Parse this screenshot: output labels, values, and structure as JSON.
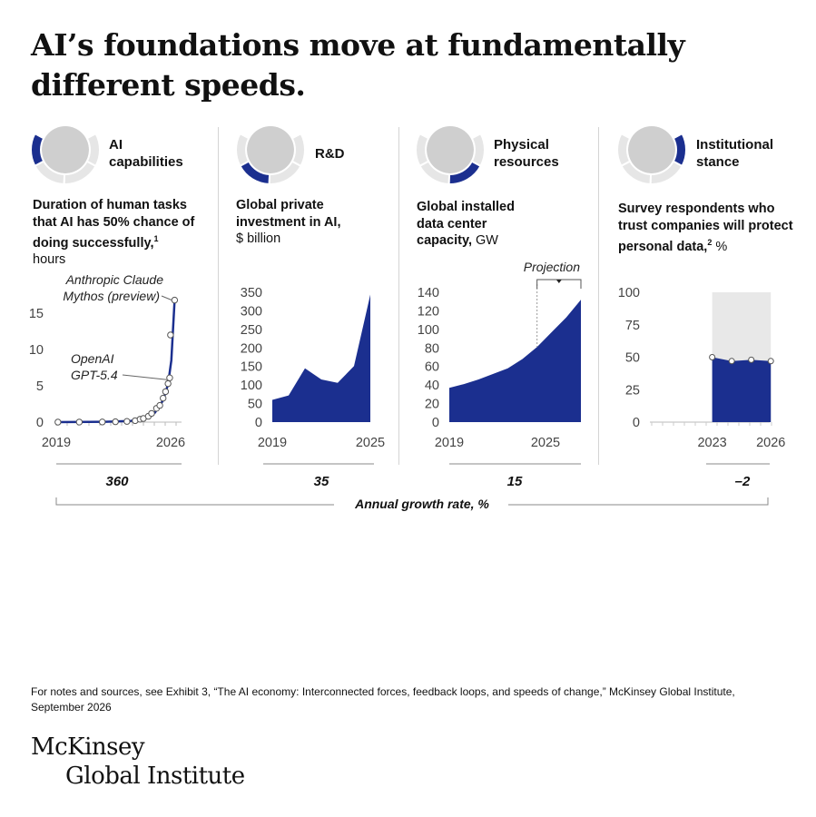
{
  "title": "AI’s foundations move at fundamentally different speeds.",
  "colors": {
    "navy": "#1b2f8f",
    "gray": "#cfcfcf",
    "lightgray": "#e6e6e6",
    "text": "#111111"
  },
  "panels": [
    {
      "tag": "AI capabilities",
      "desc_bold": "Duration of human tasks that AI has 50% chance of doing successfully,",
      "desc_sup": "1",
      "desc_unit": "hours",
      "growth": "360"
    },
    {
      "tag": "R&D",
      "desc_bold": "Global private investment in AI,",
      "desc_sup": "",
      "desc_unit": "$ billion",
      "growth": "35"
    },
    {
      "tag": "Physical resources",
      "desc_bold": "Global installed data center capacity,",
      "desc_sup": "",
      "desc_unit": "GW",
      "growth": "15"
    },
    {
      "tag": "Institutional stance",
      "desc_bold": "Survey respondents who trust companies will protect personal data,",
      "desc_sup": "2",
      "desc_unit": "%",
      "growth": "–2"
    }
  ],
  "growth_axis_label": "Annual growth rate, %",
  "footnote": "For notes and sources, see Exhibit 3, “The AI economy: Interconnected forces, feedback loops, and speeds of change,” McKinsey Global Institute, September 2026",
  "logo": {
    "line1": "McKinsey",
    "line2": "Global Institute"
  },
  "chart_data": [
    {
      "type": "scatter",
      "title": "Duration of human tasks that AI has 50% chance of doing successfully",
      "ylabel": "hours",
      "xlim": [
        2019,
        2026.4
      ],
      "ylim": [
        0,
        17
      ],
      "x_tick_labels": [
        "2019",
        "2026"
      ],
      "y_ticks": [
        0,
        5,
        10,
        15
      ],
      "points": [
        [
          2019.1,
          0.0
        ],
        [
          2020.4,
          0.01
        ],
        [
          2021.8,
          0.02
        ],
        [
          2022.6,
          0.05
        ],
        [
          2023.3,
          0.1
        ],
        [
          2023.8,
          0.2
        ],
        [
          2024.1,
          0.4
        ],
        [
          2024.3,
          0.5
        ],
        [
          2024.6,
          0.8
        ],
        [
          2024.8,
          1.2
        ],
        [
          2025.1,
          1.9
        ],
        [
          2025.3,
          2.3
        ],
        [
          2025.5,
          3.3
        ],
        [
          2025.65,
          4.2
        ],
        [
          2025.8,
          5.3
        ],
        [
          2025.9,
          6.1
        ],
        [
          2025.95,
          12.0
        ],
        [
          2026.2,
          16.8
        ]
      ],
      "curve": [
        [
          2019,
          0
        ],
        [
          2022,
          0.05
        ],
        [
          2023.5,
          0.15
        ],
        [
          2024.5,
          0.6
        ],
        [
          2025,
          1.3
        ],
        [
          2025.5,
          3.0
        ],
        [
          2025.8,
          5.2
        ],
        [
          2026.0,
          8.5
        ],
        [
          2026.2,
          16.8
        ]
      ],
      "annotations": [
        {
          "text": "Anthropic Claude",
          "text2": "Mythos (preview)",
          "x": 2026.2,
          "y": 16.8
        },
        {
          "text": "OpenAI",
          "text2": "GPT-5.4",
          "x": 2025.9,
          "y": 6.1
        }
      ]
    },
    {
      "type": "area",
      "title": "Global private investment in AI",
      "ylabel": "$ billion",
      "xlim": [
        2019,
        2025
      ],
      "ylim": [
        0,
        350
      ],
      "x_tick_labels": [
        "2019",
        "2025"
      ],
      "y_ticks": [
        0,
        50,
        100,
        150,
        200,
        250,
        300,
        350
      ],
      "x": [
        2019,
        2020,
        2021,
        2022,
        2023,
        2024,
        2025
      ],
      "values": [
        60,
        72,
        145,
        115,
        106,
        151,
        344
      ]
    },
    {
      "type": "area",
      "title": "Global installed data center capacity",
      "ylabel": "GW",
      "xlim": [
        2019,
        2028
      ],
      "ylim": [
        0,
        140
      ],
      "x_tick_labels": [
        "2019",
        "2025"
      ],
      "y_ticks": [
        0,
        20,
        40,
        60,
        80,
        100,
        120,
        140
      ],
      "x": [
        2019,
        2020,
        2021,
        2022,
        2023,
        2024,
        2025,
        2026,
        2027,
        2028
      ],
      "values": [
        37,
        41,
        46,
        52,
        58,
        68,
        81,
        97,
        113,
        132
      ],
      "projection_label": "Projection",
      "projection_from": 2025
    },
    {
      "type": "bar",
      "title": "Survey respondents who trust companies will protect personal data",
      "ylabel": "%",
      "xlim": [
        2020,
        2026.5
      ],
      "ylim": [
        0,
        100
      ],
      "x_tick_labels": [
        "2023",
        "2026"
      ],
      "y_ticks": [
        0,
        25,
        50,
        75,
        100
      ],
      "x": [
        2023,
        2024,
        2025,
        2026
      ],
      "values": [
        50,
        47,
        48,
        47
      ]
    }
  ]
}
